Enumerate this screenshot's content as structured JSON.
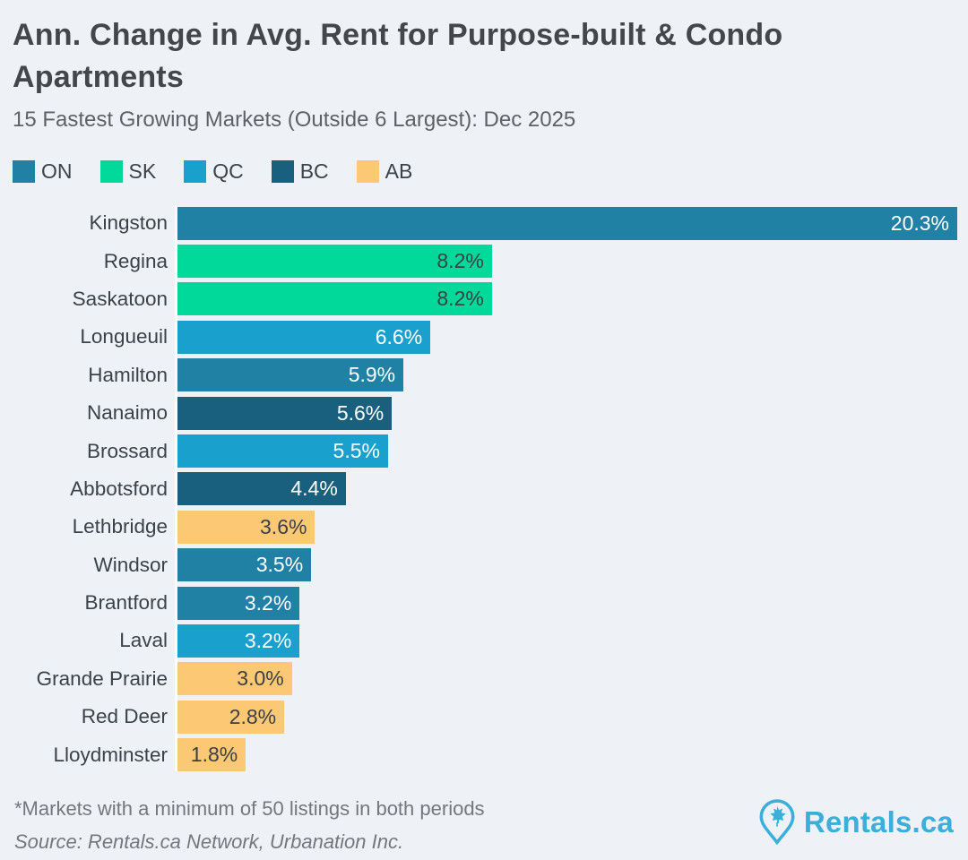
{
  "header": {
    "title": "Ann. Change in Avg. Rent for Purpose-built & Condo Apartments",
    "subtitle": "15 Fastest Growing Markets (Outside 6 Largest): Dec 2025"
  },
  "legend": [
    {
      "label": "ON",
      "color": "#2181a4"
    },
    {
      "label": "SK",
      "color": "#00d99a"
    },
    {
      "label": "QC",
      "color": "#1aa0cc"
    },
    {
      "label": "BC",
      "color": "#19607e"
    },
    {
      "label": "AB",
      "color": "#fdc873"
    }
  ],
  "chart_data": {
    "type": "bar",
    "orientation": "horizontal",
    "title": "Ann. Change in Avg. Rent for Purpose-built & Condo Apartments",
    "subtitle": "15 Fastest Growing Markets (Outside 6 Largest): Dec 2025",
    "unit": "%",
    "xlim": [
      0,
      20.3
    ],
    "grid": false,
    "legend_position": "top",
    "categories": [
      "Kingston",
      "Regina",
      "Saskatoon",
      "Longueuil",
      "Hamilton",
      "Nanaimo",
      "Brossard",
      "Abbotsford",
      "Lethbridge",
      "Windsor",
      "Brantford",
      "Laval",
      "Grande Prairie",
      "Red Deer",
      "Lloydminster"
    ],
    "series": [
      {
        "name": "Annual change in average rent (%)",
        "values": [
          20.3,
          8.2,
          8.2,
          6.6,
          5.9,
          5.6,
          5.5,
          4.4,
          3.6,
          3.5,
          3.2,
          3.2,
          3.0,
          2.8,
          1.8
        ]
      }
    ],
    "rows": [
      {
        "city": "Kingston",
        "province": "ON",
        "value": 20.3,
        "label": "20.3%"
      },
      {
        "city": "Regina",
        "province": "SK",
        "value": 8.2,
        "label": "8.2%"
      },
      {
        "city": "Saskatoon",
        "province": "SK",
        "value": 8.2,
        "label": "8.2%"
      },
      {
        "city": "Longueuil",
        "province": "QC",
        "value": 6.6,
        "label": "6.6%"
      },
      {
        "city": "Hamilton",
        "province": "ON",
        "value": 5.9,
        "label": "5.9%"
      },
      {
        "city": "Nanaimo",
        "province": "BC",
        "value": 5.6,
        "label": "5.6%"
      },
      {
        "city": "Brossard",
        "province": "QC",
        "value": 5.5,
        "label": "5.5%"
      },
      {
        "city": "Abbotsford",
        "province": "BC",
        "value": 4.4,
        "label": "4.4%"
      },
      {
        "city": "Lethbridge",
        "province": "AB",
        "value": 3.6,
        "label": "3.6%"
      },
      {
        "city": "Windsor",
        "province": "ON",
        "value": 3.5,
        "label": "3.5%"
      },
      {
        "city": "Brantford",
        "province": "ON",
        "value": 3.2,
        "label": "3.2%"
      },
      {
        "city": "Laval",
        "province": "QC",
        "value": 3.2,
        "label": "3.2%"
      },
      {
        "city": "Grande Prairie",
        "province": "AB",
        "value": 3.0,
        "label": "3.0%"
      },
      {
        "city": "Red Deer",
        "province": "AB",
        "value": 2.8,
        "label": "2.8%"
      },
      {
        "city": "Lloydminster",
        "province": "AB",
        "value": 1.8,
        "label": "1.8%"
      }
    ],
    "province_colors": {
      "ON": "#2181a4",
      "SK": "#00d99a",
      "QC": "#1aa0cc",
      "BC": "#19607e",
      "AB": "#fdc873"
    },
    "value_label_colors": {
      "ON": "#ffffff",
      "SK": "#3a4048",
      "QC": "#ffffff",
      "BC": "#ffffff",
      "AB": "#3a4048"
    }
  },
  "footer": {
    "footnote": "*Markets with a minimum of 50 listings in both periods",
    "source": "Source: Rentals.ca Network, Urbanation Inc.",
    "logo_text": "Rentals.ca",
    "logo_color": "#3bafd9"
  }
}
